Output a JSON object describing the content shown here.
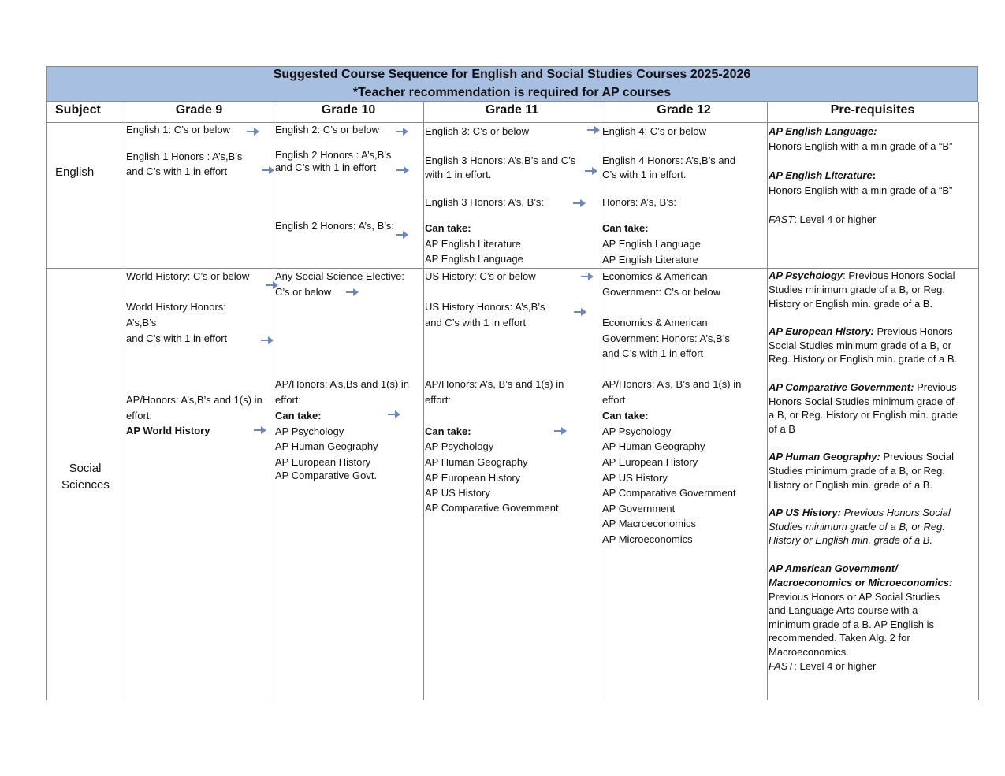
{
  "title": "Suggested Course Sequence for English and Social Studies Courses 2025-2026",
  "subtitle": "*Teacher recommendation is required for AP courses",
  "arrow_color": "#6b87c2",
  "header_color": "#a7c0e1",
  "columns": [
    "Subject",
    "Grade 9",
    "Grade 10",
    "Grade 11",
    "Grade 12",
    "Pre-requisites"
  ],
  "rows": [
    {
      "subject": "English",
      "cells": [
        [
          {
            "t": "English 1: C’s or below"
          },
          {
            "t": "English 1 Honors : A’s,B’s"
          },
          {
            "t": "and C’s with 1 in effort"
          }
        ],
        [
          {
            "t": "English 2: C’s or below"
          },
          {
            "t": "English 2 Honors : A’s,B’s"
          },
          {
            "t": "and C’s with 1 in effort"
          },
          {
            "t": "English 2 Honors: A’s, B’s:"
          }
        ],
        [
          {
            "t": "English 3: C’s or below"
          },
          {
            "t": "English 3 Honors: A’s,B’s  and C’s"
          },
          {
            "t": "with 1 in effort."
          },
          {
            "t": "English 3 Honors: A’s, B’s:"
          },
          {
            "t": "Can take:",
            "s": "b"
          },
          {
            "t": "AP English Literature"
          },
          {
            "t": "AP English Language"
          }
        ],
        [
          {
            "t": "English 4:  C’s or below"
          },
          {
            "t": "English 4 Honors: A’s,B’s and"
          },
          {
            "t": "C’s with 1 in effort."
          },
          {
            "t": "Honors: A’s, B’s:"
          },
          {
            "t": "Can take:",
            "s": "b"
          },
          {
            "t": "AP English Language"
          },
          {
            "t": "AP English Literature"
          }
        ],
        [
          {
            "lead": "AP English Language:",
            "t": ""
          },
          {
            "t": "Honors English with a min grade of a “B”"
          },
          {
            "lead": "AP English Literature",
            "t": ":",
            "s": "b"
          },
          {
            "t": "Honors English with a min grade of a “B”"
          },
          {
            "lead": "FAST",
            "ls": "i",
            "t": ": Level 4 or higher"
          }
        ]
      ]
    },
    {
      "subject": "Social Sciences",
      "cells": [
        [
          {
            "t": "World History: C’s or below"
          },
          {
            "t": "World History Honors:"
          },
          {
            "t": "A’s,B’s"
          },
          {
            "t": "and C’s with 1 in effort"
          },
          {
            "t": "AP/Honors: A’s,B’s  and 1(s) in"
          },
          {
            "t": "effort:"
          },
          {
            "t": " AP World History",
            "s": "b"
          }
        ],
        [
          {
            "t": "Any Social Science Elective:"
          },
          {
            "t": "C’s or below"
          },
          {
            "t": "AP/Honors: A’s,Bs and 1(s) in"
          },
          {
            "t": "effort:"
          },
          {
            "t": "Can take:",
            "s": "b"
          },
          {
            "t": "AP Psychology"
          },
          {
            "t": "AP Human Geography"
          },
          {
            "t": "AP European History"
          },
          {
            "t": "AP Comparative Govt."
          }
        ],
        [
          {
            "t": "US History: C’s or below"
          },
          {
            "t": "US History Honors: A’s,B’s"
          },
          {
            "t": "and C’s with 1 in effort"
          },
          {
            "t": "AP/Honors: A’s, B’s and 1(s) in"
          },
          {
            "t": "effort:"
          },
          {
            "t": "Can take:",
            "s": "b"
          },
          {
            "t": "AP Psychology"
          },
          {
            "t": "AP Human Geography"
          },
          {
            "t": "AP European History"
          },
          {
            "t": "AP US History"
          },
          {
            "t": "AP Comparative Government"
          }
        ],
        [
          {
            "t": "Economics & American"
          },
          {
            "t": "Government: C’s or below"
          },
          {
            "t": "Economics & American"
          },
          {
            "t": "Government Honors: A’s,B’s"
          },
          {
            "t": "and C’s with 1 in effort"
          },
          {
            "t": "AP/Honors: A’s, B’s and 1(s) in"
          },
          {
            "t": "effort"
          },
          {
            "t": "Can take:",
            "s": "b"
          },
          {
            "t": "AP Psychology"
          },
          {
            "t": "AP Human Geography"
          },
          {
            "t": "AP European History"
          },
          {
            "t": "AP US History"
          },
          {
            "t": "AP Comparative Government"
          },
          {
            "t": "AP Government"
          },
          {
            "t": "AP Macroeconomics"
          },
          {
            "t": "AP Microeconomics"
          }
        ],
        [
          {
            "lead": "AP Psychology",
            "t": ": Previous Honors Social",
            "ts": "mixb"
          },
          {
            "t": "Studies minimum grade of a B, or Reg."
          },
          {
            "t": "History or English min. grade of a B."
          },
          {
            "lead": "AP European History:",
            "t": " Previous Honors"
          },
          {
            "t": "Social Studies minimum grade of a B, or"
          },
          {
            "t": "Reg. History or English min. grade of a B."
          },
          {
            "lead": "AP Comparative Government:",
            "t": " Previous"
          },
          {
            "t": "Honors Social Studies minimum grade of"
          },
          {
            "t": "a B, or Reg. History or English min. grade"
          },
          {
            "t": "of a B"
          },
          {
            "lead": "AP Human Geography:",
            "t": " Previous Social"
          },
          {
            "t": "Studies minimum grade of a B, or Reg."
          },
          {
            "t": "History or English min. grade of a B."
          },
          {
            "lead": "AP US History:",
            "t": " Previous Honors Social",
            "s": "i"
          },
          {
            "t": "Studies minimum grade of a B, or Reg.",
            "s": "i"
          },
          {
            "t": "History or English min. grade of a B.",
            "s": "i"
          },
          {
            "t": "AP American Government/",
            "s": "bi"
          },
          {
            "t": "Macroeconomics or Microeconomics:",
            "s": "bi"
          },
          {
            "t": "Previous Honors or AP Social Studies"
          },
          {
            "t": "and Language Arts course with a"
          },
          {
            "t": "minimum grade of a B. AP English is"
          },
          {
            "t": "recommended. Taken Alg. 2 for"
          },
          {
            "t": "Macroeconomics."
          },
          {
            "lead": "FAST",
            "ls": "i",
            "t": ": Level 4 or higher"
          }
        ]
      ]
    }
  ]
}
